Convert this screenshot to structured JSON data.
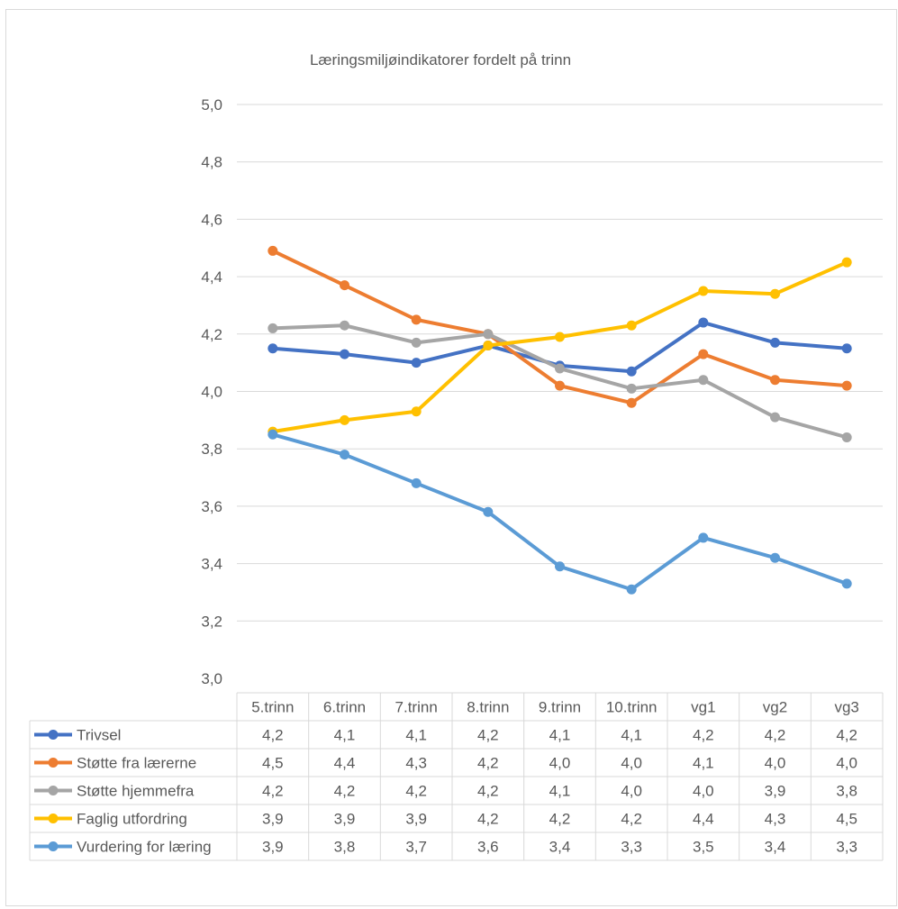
{
  "chart_data": {
    "type": "line",
    "title": "Læringsmiljøindikatorer fordelt på trinn",
    "categories": [
      "5.trinn",
      "6.trinn",
      "7.trinn",
      "8.trinn",
      "9.trinn",
      "10.trinn",
      "vg1",
      "vg2",
      "vg3"
    ],
    "ylim": [
      3.0,
      5.0
    ],
    "yticks": [
      "3,0",
      "3,2",
      "3,4",
      "3,6",
      "3,8",
      "4,0",
      "4,2",
      "4,4",
      "4,6",
      "4,8",
      "5,0"
    ],
    "grid": true,
    "legend": "data-table",
    "series": [
      {
        "name": "Trivsel",
        "color": "#4472c4",
        "values": [
          4.15,
          4.13,
          4.1,
          4.16,
          4.09,
          4.07,
          4.24,
          4.17,
          4.15
        ],
        "labels": [
          "4,2",
          "4,1",
          "4,1",
          "4,2",
          "4,1",
          "4,1",
          "4,2",
          "4,2",
          "4,2"
        ]
      },
      {
        "name": "Støtte fra lærerne",
        "color": "#ed7d31",
        "values": [
          4.49,
          4.37,
          4.25,
          4.2,
          4.02,
          3.96,
          4.13,
          4.04,
          4.02
        ],
        "labels": [
          "4,5",
          "4,4",
          "4,3",
          "4,2",
          "4,0",
          "4,0",
          "4,1",
          "4,0",
          "4,0"
        ]
      },
      {
        "name": "Støtte hjemmefra",
        "color": "#a5a5a5",
        "values": [
          4.22,
          4.23,
          4.17,
          4.2,
          4.08,
          4.01,
          4.04,
          3.91,
          3.84
        ],
        "labels": [
          "4,2",
          "4,2",
          "4,2",
          "4,2",
          "4,1",
          "4,0",
          "4,0",
          "3,9",
          "3,8"
        ]
      },
      {
        "name": "Faglig utfordring",
        "color": "#ffc000",
        "values": [
          3.86,
          3.9,
          3.93,
          4.16,
          4.19,
          4.23,
          4.35,
          4.34,
          4.45
        ],
        "labels": [
          "3,9",
          "3,9",
          "3,9",
          "4,2",
          "4,2",
          "4,2",
          "4,4",
          "4,3",
          "4,5"
        ]
      },
      {
        "name": "Vurdering for læring",
        "color": "#5b9bd5",
        "values": [
          3.85,
          3.78,
          3.68,
          3.58,
          3.39,
          3.31,
          3.49,
          3.42,
          3.33
        ],
        "labels": [
          "3,9",
          "3,8",
          "3,7",
          "3,6",
          "3,4",
          "3,3",
          "3,5",
          "3,4",
          "3,3"
        ]
      }
    ]
  }
}
